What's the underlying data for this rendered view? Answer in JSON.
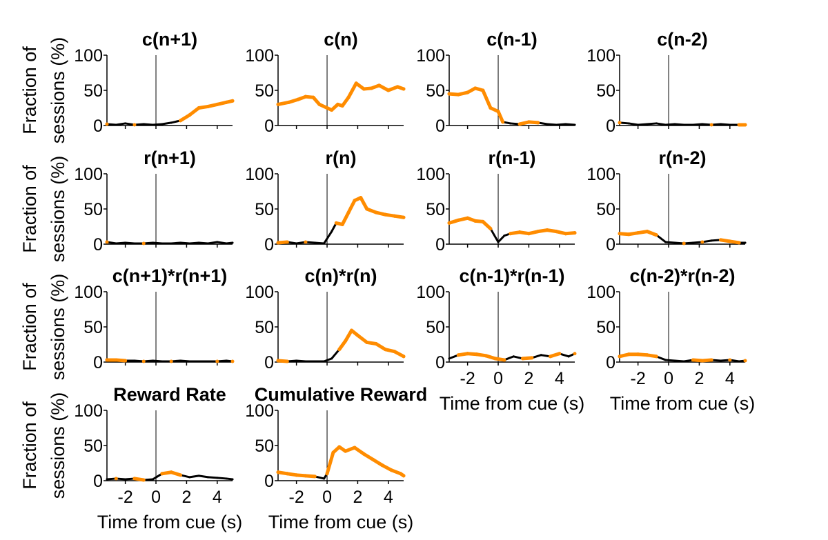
{
  "figure": {
    "ylabel_line1": "Fraction of",
    "ylabel_line2": "sessions (%)",
    "xlabel": "Time from cue (s)"
  },
  "colors": {
    "significant": "#ff8c00",
    "nonsignificant": "#000000",
    "axis": "#000000"
  },
  "chart_data": {
    "type": "line",
    "x_range": [
      -3.2,
      5
    ],
    "ylim": [
      0,
      100
    ],
    "yticks": [
      "0",
      "50",
      "100"
    ],
    "xticks": [
      "-2",
      "0",
      "2",
      "4"
    ],
    "vline_x": 0,
    "xlabel": "Time from cue (s)",
    "ylabel": "Fraction of sessions (%)",
    "grid": false,
    "panels": [
      {
        "title": "c(n+1)",
        "x": [
          -3.2,
          -2.6,
          -2.0,
          -1.4,
          -0.8,
          -0.2,
          0.4,
          1.0,
          1.6,
          2.2,
          2.8,
          3.4,
          4.0,
          4.6,
          5.0
        ],
        "y": [
          2,
          1,
          3,
          1,
          2,
          1,
          2,
          4,
          7,
          15,
          25,
          27,
          30,
          33,
          35
        ],
        "sig": [
          1,
          0,
          0,
          1,
          0,
          0,
          0,
          0,
          1,
          1,
          1,
          1,
          1,
          1,
          1
        ]
      },
      {
        "title": "c(n)",
        "x": [
          -3.2,
          -2.5,
          -1.9,
          -1.4,
          -0.9,
          -0.5,
          0.0,
          0.3,
          0.7,
          1.0,
          1.4,
          1.9,
          2.4,
          2.9,
          3.4,
          4.0,
          4.6,
          5.0
        ],
        "y": [
          30,
          33,
          37,
          41,
          40,
          30,
          25,
          22,
          30,
          28,
          40,
          60,
          52,
          53,
          57,
          50,
          55,
          52
        ],
        "sig": [
          1,
          1,
          1,
          1,
          1,
          1,
          1,
          1,
          1,
          1,
          1,
          1,
          1,
          1,
          1,
          1,
          1,
          1
        ]
      },
      {
        "title": "c(n-1)",
        "x": [
          -3.2,
          -2.6,
          -2.0,
          -1.5,
          -1.0,
          -0.5,
          0.0,
          0.3,
          0.8,
          1.4,
          2.0,
          2.6,
          3.2,
          3.8,
          4.4,
          5.0
        ],
        "y": [
          45,
          44,
          47,
          53,
          50,
          25,
          20,
          5,
          3,
          2,
          5,
          4,
          2,
          1,
          2,
          1
        ],
        "sig": [
          1,
          1,
          1,
          1,
          1,
          1,
          1,
          1,
          0,
          1,
          1,
          1,
          0,
          0,
          0,
          0
        ]
      },
      {
        "title": "c(n-2)",
        "x": [
          -3.2,
          -2.6,
          -2.0,
          -1.4,
          -0.8,
          -0.2,
          0.4,
          1.0,
          1.6,
          2.2,
          2.8,
          3.4,
          4.0,
          4.6,
          5.0
        ],
        "y": [
          4,
          3,
          1,
          2,
          3,
          1,
          2,
          1,
          1,
          2,
          1,
          2,
          1,
          1,
          1
        ],
        "sig": [
          1,
          0,
          0,
          0,
          0,
          0,
          0,
          0,
          0,
          0,
          1,
          0,
          0,
          1,
          1
        ]
      },
      {
        "title": "r(n+1)",
        "x": [
          -3.2,
          -2.6,
          -2.0,
          -1.4,
          -0.8,
          -0.2,
          0.4,
          1.0,
          1.6,
          2.2,
          2.8,
          3.4,
          4.0,
          4.6,
          5.0
        ],
        "y": [
          3,
          1,
          2,
          1,
          1,
          2,
          1,
          1,
          2,
          1,
          2,
          1,
          3,
          1,
          2
        ],
        "sig": [
          1,
          0,
          0,
          0,
          1,
          0,
          0,
          0,
          0,
          0,
          0,
          0,
          0,
          0,
          0
        ]
      },
      {
        "title": "r(n)",
        "x": [
          -3.2,
          -2.6,
          -2.0,
          -1.4,
          -0.8,
          -0.2,
          0.3,
          0.6,
          1.0,
          1.4,
          1.8,
          2.2,
          2.6,
          3.2,
          3.8,
          4.4,
          5.0
        ],
        "y": [
          2,
          3,
          1,
          3,
          2,
          1,
          18,
          30,
          28,
          45,
          62,
          66,
          50,
          45,
          42,
          40,
          38
        ],
        "sig": [
          1,
          1,
          0,
          1,
          0,
          0,
          0,
          1,
          1,
          1,
          1,
          1,
          1,
          1,
          1,
          1,
          1
        ]
      },
      {
        "title": "r(n-1)",
        "x": [
          -3.2,
          -2.6,
          -2.0,
          -1.5,
          -1.0,
          -0.5,
          0.0,
          0.4,
          0.8,
          1.4,
          2.0,
          2.6,
          3.2,
          3.8,
          4.4,
          5.0
        ],
        "y": [
          30,
          34,
          37,
          33,
          32,
          22,
          3,
          12,
          15,
          17,
          15,
          18,
          20,
          18,
          15,
          16
        ],
        "sig": [
          1,
          1,
          1,
          1,
          1,
          1,
          0,
          0,
          1,
          1,
          1,
          1,
          1,
          1,
          1,
          1
        ]
      },
      {
        "title": "r(n-2)",
        "x": [
          -3.2,
          -2.6,
          -2.0,
          -1.4,
          -0.8,
          -0.2,
          0.4,
          1.0,
          1.6,
          2.2,
          2.8,
          3.4,
          4.0,
          4.6,
          5.0
        ],
        "y": [
          15,
          14,
          16,
          18,
          13,
          3,
          2,
          1,
          2,
          3,
          5,
          6,
          4,
          2,
          2
        ],
        "sig": [
          1,
          1,
          1,
          1,
          1,
          0,
          0,
          1,
          0,
          1,
          0,
          1,
          1,
          1,
          0
        ]
      },
      {
        "title": "c(n+1)*r(n+1)",
        "x": [
          -3.2,
          -2.6,
          -2.0,
          -1.4,
          -0.8,
          -0.2,
          0.4,
          1.0,
          1.6,
          2.2,
          2.8,
          3.4,
          4.0,
          4.6,
          5.0
        ],
        "y": [
          3,
          3,
          2,
          2,
          1,
          2,
          1,
          1,
          2,
          1,
          1,
          1,
          1,
          2,
          1
        ],
        "sig": [
          1,
          1,
          1,
          0,
          1,
          0,
          0,
          1,
          0,
          0,
          0,
          0,
          1,
          0,
          1
        ]
      },
      {
        "title": "c(n)*r(n)",
        "x": [
          -3.2,
          -2.6,
          -2.0,
          -1.4,
          -0.8,
          -0.2,
          0.3,
          0.8,
          1.2,
          1.6,
          2.0,
          2.6,
          3.2,
          3.8,
          4.4,
          5.0
        ],
        "y": [
          2,
          1,
          2,
          1,
          1,
          1,
          5,
          18,
          30,
          45,
          38,
          28,
          26,
          18,
          15,
          8
        ],
        "sig": [
          1,
          1,
          0,
          0,
          0,
          0,
          0,
          1,
          1,
          1,
          1,
          1,
          1,
          1,
          1,
          1
        ]
      },
      {
        "title": "c(n-1)*r(n-1)",
        "x": [
          -3.2,
          -2.6,
          -2.0,
          -1.4,
          -0.8,
          -0.2,
          0.4,
          1.0,
          1.6,
          2.2,
          2.8,
          3.4,
          4.0,
          4.6,
          5.0
        ],
        "y": [
          5,
          10,
          12,
          11,
          9,
          5,
          3,
          8,
          5,
          6,
          10,
          8,
          12,
          8,
          12
        ],
        "sig": [
          0,
          1,
          1,
          1,
          1,
          1,
          1,
          0,
          1,
          1,
          0,
          1,
          1,
          0,
          1
        ]
      },
      {
        "title": "c(n-2)*r(n-2)",
        "x": [
          -3.2,
          -2.6,
          -2.0,
          -1.4,
          -0.8,
          -0.2,
          0.4,
          1.0,
          1.6,
          2.2,
          2.8,
          3.4,
          4.0,
          4.6,
          5.0
        ],
        "y": [
          8,
          11,
          11,
          10,
          8,
          3,
          2,
          1,
          3,
          2,
          3,
          2,
          3,
          1,
          2
        ],
        "sig": [
          1,
          1,
          1,
          1,
          1,
          0,
          0,
          0,
          1,
          1,
          1,
          0,
          1,
          0,
          1
        ]
      },
      {
        "title": "Reward Rate",
        "x": [
          -3.2,
          -2.6,
          -2.0,
          -1.4,
          -0.8,
          -0.2,
          0.4,
          1.0,
          1.6,
          2.2,
          2.8,
          3.4,
          4.0,
          4.6,
          5.0
        ],
        "y": [
          2,
          3,
          2,
          3,
          1,
          2,
          10,
          12,
          8,
          5,
          7,
          5,
          4,
          3,
          2
        ],
        "sig": [
          0,
          1,
          0,
          1,
          1,
          0,
          1,
          1,
          1,
          0,
          0,
          0,
          0,
          0,
          0
        ]
      },
      {
        "title": "Cumulative Reward",
        "x": [
          -3.2,
          -2.6,
          -2.0,
          -1.4,
          -0.8,
          -0.2,
          0.0,
          0.4,
          0.8,
          1.2,
          1.8,
          2.4,
          3.0,
          3.6,
          4.2,
          4.8,
          5.0
        ],
        "y": [
          12,
          10,
          8,
          7,
          6,
          3,
          10,
          40,
          48,
          42,
          47,
          38,
          30,
          22,
          15,
          10,
          7
        ],
        "sig": [
          1,
          1,
          1,
          1,
          1,
          0,
          1,
          1,
          1,
          1,
          1,
          1,
          1,
          1,
          1,
          1,
          1
        ]
      }
    ]
  }
}
